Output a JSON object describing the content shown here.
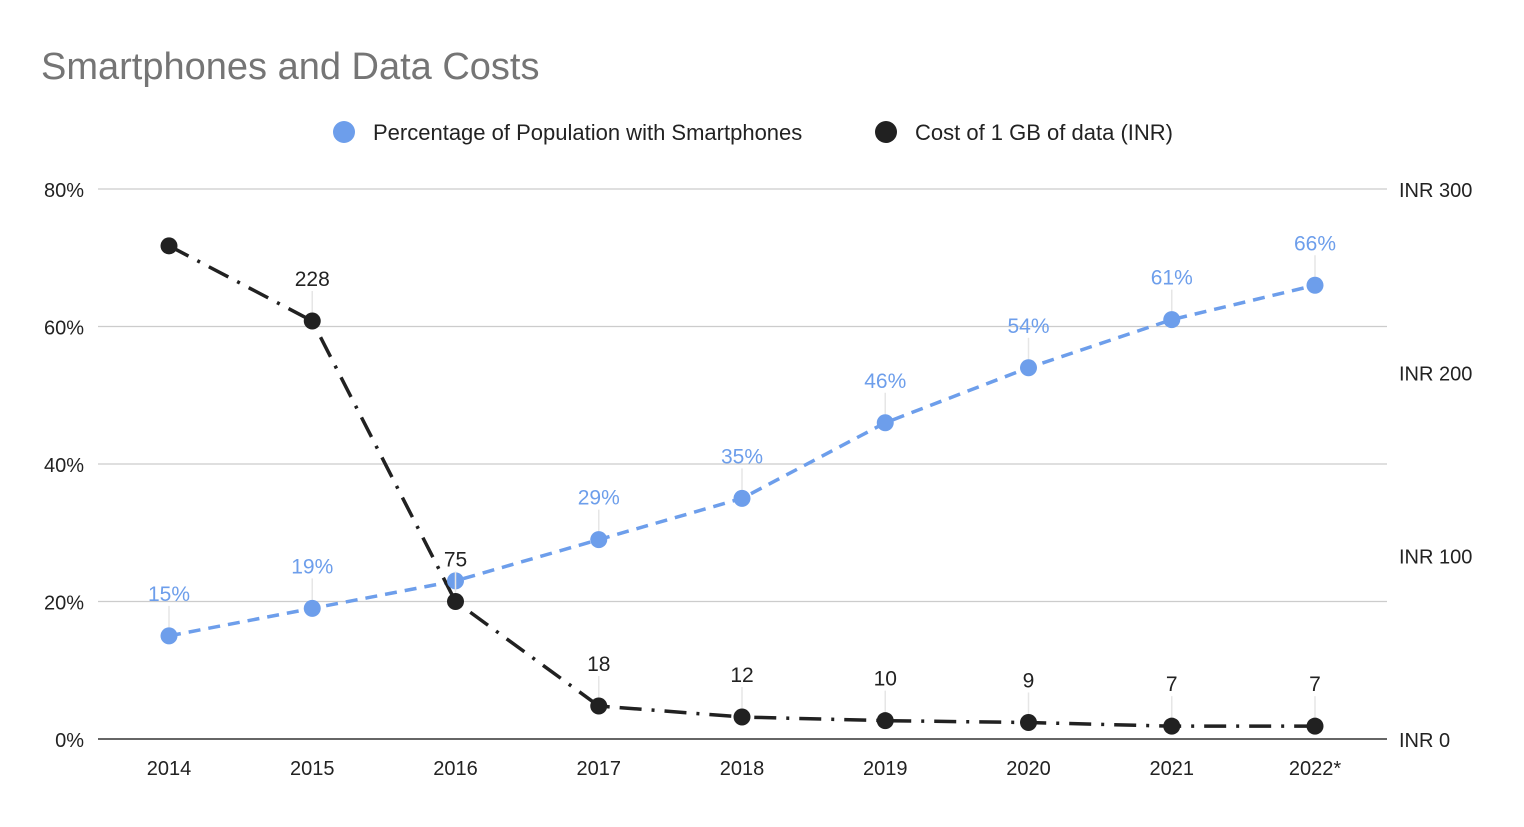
{
  "chart_data": {
    "type": "line",
    "title": "Smartphones and Data Costs",
    "categories": [
      "2014",
      "2015",
      "2016",
      "2017",
      "2018",
      "2019",
      "2020",
      "2021",
      "2022*"
    ],
    "legend_position": "top",
    "grid": true,
    "series": [
      {
        "name": "Percentage of Population with Smartphones",
        "axis": "left",
        "color": "#6d9eeb",
        "line_style": "dashed",
        "values": [
          15,
          19,
          23,
          29,
          35,
          46,
          54,
          61,
          66
        ],
        "data_labels": [
          "15%",
          "19%",
          "",
          "29%",
          "35%",
          "46%",
          "54%",
          "61%",
          "66%"
        ]
      },
      {
        "name": "Cost of 1 GB of data (INR)",
        "axis": "right",
        "color": "#212121",
        "line_style": "dash-dot",
        "values": [
          269,
          228,
          75,
          18,
          12,
          10,
          9,
          7,
          7
        ],
        "data_labels": [
          "",
          "228",
          "75",
          "18",
          "12",
          "10",
          "9",
          "7",
          "7"
        ]
      }
    ],
    "left_axis": {
      "ylim": [
        0,
        80
      ],
      "ticks": [
        "0%",
        "20%",
        "40%",
        "60%",
        "80%"
      ]
    },
    "right_axis": {
      "ylim": [
        0,
        300
      ],
      "ticks": [
        "INR 0",
        "INR 100",
        "INR 200",
        "INR 300"
      ]
    }
  }
}
